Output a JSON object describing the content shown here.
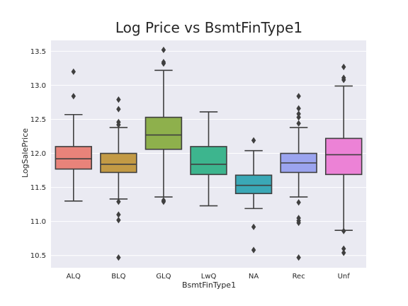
{
  "chart_data": {
    "type": "box",
    "title": "Log Price vs BsmtFinType1",
    "xlabel": "BsmtFinType1",
    "ylabel": "LogSalePrice",
    "ylim": [
      10.32,
      13.66
    ],
    "yticks": [
      "10.5",
      "11.0",
      "11.5",
      "12.0",
      "12.5",
      "13.0",
      "13.5"
    ],
    "grid": true,
    "box_stroke": "#3f3f3f",
    "plot_background": "#eaeaf2",
    "categories": [
      "ALQ",
      "BLQ",
      "GLQ",
      "LwQ",
      "NA",
      "Rec",
      "Unf"
    ],
    "boxes": [
      {
        "name": "ALQ",
        "color": "#e8837a",
        "whisker_low": 11.3,
        "q1": 11.77,
        "median": 11.92,
        "q3": 12.1,
        "whisker_high": 12.57,
        "outliers": [
          12.84,
          13.2
        ]
      },
      {
        "name": "BLQ",
        "color": "#c39a45",
        "whisker_low": 11.33,
        "q1": 11.72,
        "median": 11.84,
        "q3": 12.0,
        "whisker_high": 12.38,
        "outliers": [
          10.47,
          11.02,
          11.1,
          11.29,
          12.42,
          12.46,
          12.65,
          12.79
        ]
      },
      {
        "name": "GLQ",
        "color": "#8eb04c",
        "whisker_low": 11.36,
        "q1": 12.06,
        "median": 12.27,
        "q3": 12.53,
        "whisker_high": 13.22,
        "outliers": [
          11.29,
          11.31,
          13.32,
          13.34,
          13.52
        ]
      },
      {
        "name": "LwQ",
        "color": "#3db58e",
        "whisker_low": 11.23,
        "q1": 11.69,
        "median": 11.84,
        "q3": 12.1,
        "whisker_high": 12.61,
        "outliers": []
      },
      {
        "name": "NA",
        "color": "#3aa8b6",
        "whisker_low": 11.19,
        "q1": 11.41,
        "median": 11.53,
        "q3": 11.68,
        "whisker_high": 12.04,
        "outliers": [
          10.58,
          10.92,
          12.19
        ]
      },
      {
        "name": "Rec",
        "color": "#9ba4ef",
        "whisker_low": 11.36,
        "q1": 11.72,
        "median": 11.86,
        "q3": 12.0,
        "whisker_high": 12.38,
        "outliers": [
          10.47,
          10.98,
          11.01,
          11.05,
          11.28,
          12.44,
          12.53,
          12.58,
          12.66,
          12.84
        ]
      },
      {
        "name": "Unf",
        "color": "#ec82d6",
        "whisker_low": 10.87,
        "q1": 11.69,
        "median": 11.98,
        "q3": 12.22,
        "whisker_high": 12.99,
        "outliers": [
          10.54,
          10.6,
          10.86,
          13.08,
          13.11,
          13.27
        ]
      }
    ]
  }
}
